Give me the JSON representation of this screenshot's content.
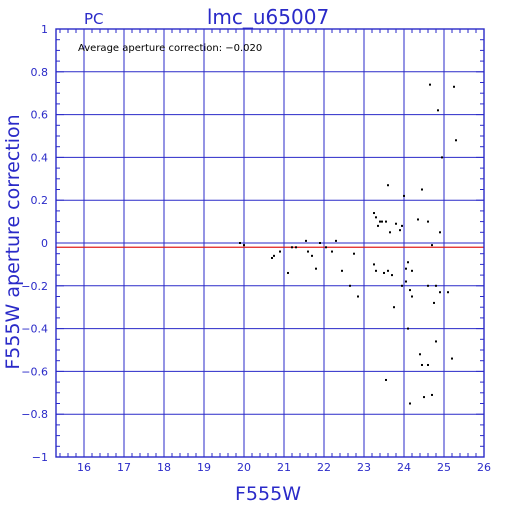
{
  "header": {
    "corner_label": "PC",
    "title": "lmc_u65007"
  },
  "chart_data": {
    "type": "scatter",
    "title": "lmc_u65007",
    "xlabel": "F555W",
    "ylabel": "F555W aperture correction",
    "xlim": [
      15.3,
      26
    ],
    "ylim": [
      -1,
      1
    ],
    "x_ticks": [
      16,
      17,
      18,
      19,
      20,
      21,
      22,
      23,
      24,
      25,
      26
    ],
    "y_ticks": [
      1,
      0.8,
      0.6,
      0.4,
      0.2,
      0,
      -0.2,
      -0.4,
      -0.6,
      -0.8,
      -1
    ],
    "x_tick_labels": [
      "16",
      "17",
      "18",
      "19",
      "20",
      "21",
      "22",
      "23",
      "24",
      "25",
      "26"
    ],
    "y_tick_labels": [
      "1",
      "0.8",
      "0.6",
      "0.4",
      "0.2",
      "0",
      "−0.2",
      "−0.4",
      "−0.6",
      "−0.8",
      "−1"
    ],
    "grid": true,
    "annotation": "Average aperture correction: −0.020",
    "reference_line": {
      "y": -0.02,
      "color": "#e02020"
    },
    "colors": {
      "axes": "#2a2ac8",
      "points": "#000000",
      "background": "#ffffff"
    },
    "points": [
      [
        19.9,
        0.0
      ],
      [
        20.0,
        -0.01
      ],
      [
        20.7,
        -0.07
      ],
      [
        20.75,
        -0.06
      ],
      [
        20.9,
        -0.04
      ],
      [
        21.1,
        -0.14
      ],
      [
        21.2,
        -0.02
      ],
      [
        21.3,
        -0.02
      ],
      [
        21.55,
        0.01
      ],
      [
        21.6,
        -0.04
      ],
      [
        21.7,
        -0.06
      ],
      [
        21.8,
        -0.12
      ],
      [
        21.9,
        0.0
      ],
      [
        22.05,
        -0.02
      ],
      [
        22.2,
        -0.04
      ],
      [
        22.3,
        0.01
      ],
      [
        22.45,
        -0.13
      ],
      [
        22.65,
        -0.2
      ],
      [
        22.75,
        -0.05
      ],
      [
        22.85,
        -0.25
      ],
      [
        23.25,
        0.14
      ],
      [
        23.3,
        0.12
      ],
      [
        23.35,
        0.08
      ],
      [
        23.4,
        0.1
      ],
      [
        23.45,
        0.1
      ],
      [
        23.55,
        0.1
      ],
      [
        23.6,
        0.27
      ],
      [
        23.65,
        0.05
      ],
      [
        23.8,
        0.09
      ],
      [
        23.9,
        0.06
      ],
      [
        23.95,
        0.08
      ],
      [
        24.0,
        0.22
      ],
      [
        23.25,
        -0.1
      ],
      [
        23.3,
        -0.13
      ],
      [
        23.5,
        -0.14
      ],
      [
        23.6,
        -0.13
      ],
      [
        23.7,
        -0.15
      ],
      [
        23.75,
        -0.3
      ],
      [
        23.95,
        -0.2
      ],
      [
        24.05,
        -0.12
      ],
      [
        24.05,
        -0.18
      ],
      [
        24.1,
        -0.09
      ],
      [
        24.15,
        -0.22
      ],
      [
        24.2,
        -0.25
      ],
      [
        24.2,
        -0.13
      ],
      [
        24.1,
        -0.4
      ],
      [
        24.15,
        -0.75
      ],
      [
        23.55,
        -0.64
      ],
      [
        24.35,
        0.11
      ],
      [
        24.45,
        0.25
      ],
      [
        24.6,
        0.1
      ],
      [
        24.7,
        -0.01
      ],
      [
        24.6,
        -0.2
      ],
      [
        24.75,
        -0.28
      ],
      [
        24.8,
        -0.2
      ],
      [
        24.9,
        -0.23
      ],
      [
        25.1,
        -0.23
      ],
      [
        24.4,
        -0.52
      ],
      [
        24.45,
        -0.57
      ],
      [
        24.6,
        -0.57
      ],
      [
        24.5,
        -0.72
      ],
      [
        24.7,
        -0.71
      ],
      [
        25.2,
        -0.54
      ],
      [
        24.8,
        -0.46
      ],
      [
        24.65,
        0.74
      ],
      [
        24.85,
        0.62
      ],
      [
        24.95,
        0.4
      ],
      [
        25.25,
        0.73
      ],
      [
        25.3,
        0.48
      ],
      [
        24.9,
        0.05
      ]
    ]
  }
}
